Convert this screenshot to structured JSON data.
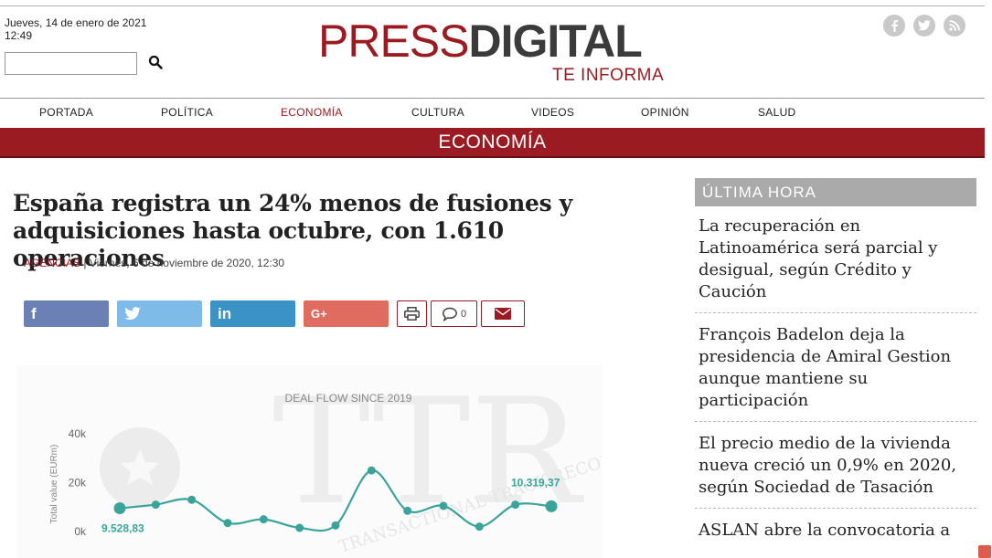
{
  "header": {
    "date": "Jueves, 14 de enero de 2021",
    "time": "12:49",
    "search": {
      "value": "",
      "placeholder": ""
    },
    "logo": {
      "press": "PRESS",
      "digital": "DIGITAL",
      "tagline": "TE INFORMA"
    },
    "social": [
      {
        "icon": "facebook-icon",
        "glyph": "f"
      },
      {
        "icon": "twitter-icon",
        "glyph": "t"
      },
      {
        "icon": "rss-icon",
        "glyph": "r"
      }
    ]
  },
  "nav": {
    "items": [
      "PORTADA",
      "POLÍTICA",
      "ECONOMÍA",
      "CULTURA",
      "VIDEOS",
      "OPINIÓN",
      "SALUD"
    ],
    "active": "ECONOMÍA"
  },
  "section": {
    "title": "ECONOMÍA"
  },
  "article": {
    "title": "España registra un 24% menos de fusiones y adquisiciones hasta octubre, con 1.610 operaciones",
    "source": "AGENCIAS",
    "date": " | Viernes, 6 de noviembre de 2020, 12:30",
    "comments": "0"
  },
  "share": {
    "facebook": "f",
    "twitter": "t",
    "linkedin": "in",
    "googleplus": "G+",
    "colors": {
      "facebook": "#6b80b5",
      "twitter": "#7fbbe9",
      "linkedin": "#3a93c4",
      "googleplus": "#e06c5f",
      "accent": "#9b1b22"
    }
  },
  "chart_data": {
    "type": "line",
    "title": "DEAL FLOW SINCE 2019",
    "ylabel": "Total value (EURm)",
    "ylim": [
      0,
      40000
    ],
    "y_ticks": [
      "0k",
      "20k",
      "40k"
    ],
    "series": [
      {
        "values": [
          9528.83,
          11000,
          13000,
          3500,
          5000,
          1500,
          2500,
          25000,
          8500,
          10500,
          2000,
          11000,
          10319.37
        ]
      }
    ],
    "labels": {
      "first": "9.528,83",
      "last": "10.319,37"
    },
    "watermark": "TTR",
    "watermark_sub": "TRANSACTIONAL TRACK RECORD",
    "color": "#3aa39a"
  },
  "sidebar": {
    "title": "ÚLTIMA HORA",
    "items": [
      "La recuperación en Latinoamérica será parcial y desigual, según Crédito y Caución",
      "François Badelon deja la presidencia de Amiral Gestion aunque mantiene su participación",
      "El precio medio de la vivienda nueva creció un 0,9% en 2020, según Sociedad de Tasación",
      "ASLAN abre la convocatoria a"
    ]
  }
}
